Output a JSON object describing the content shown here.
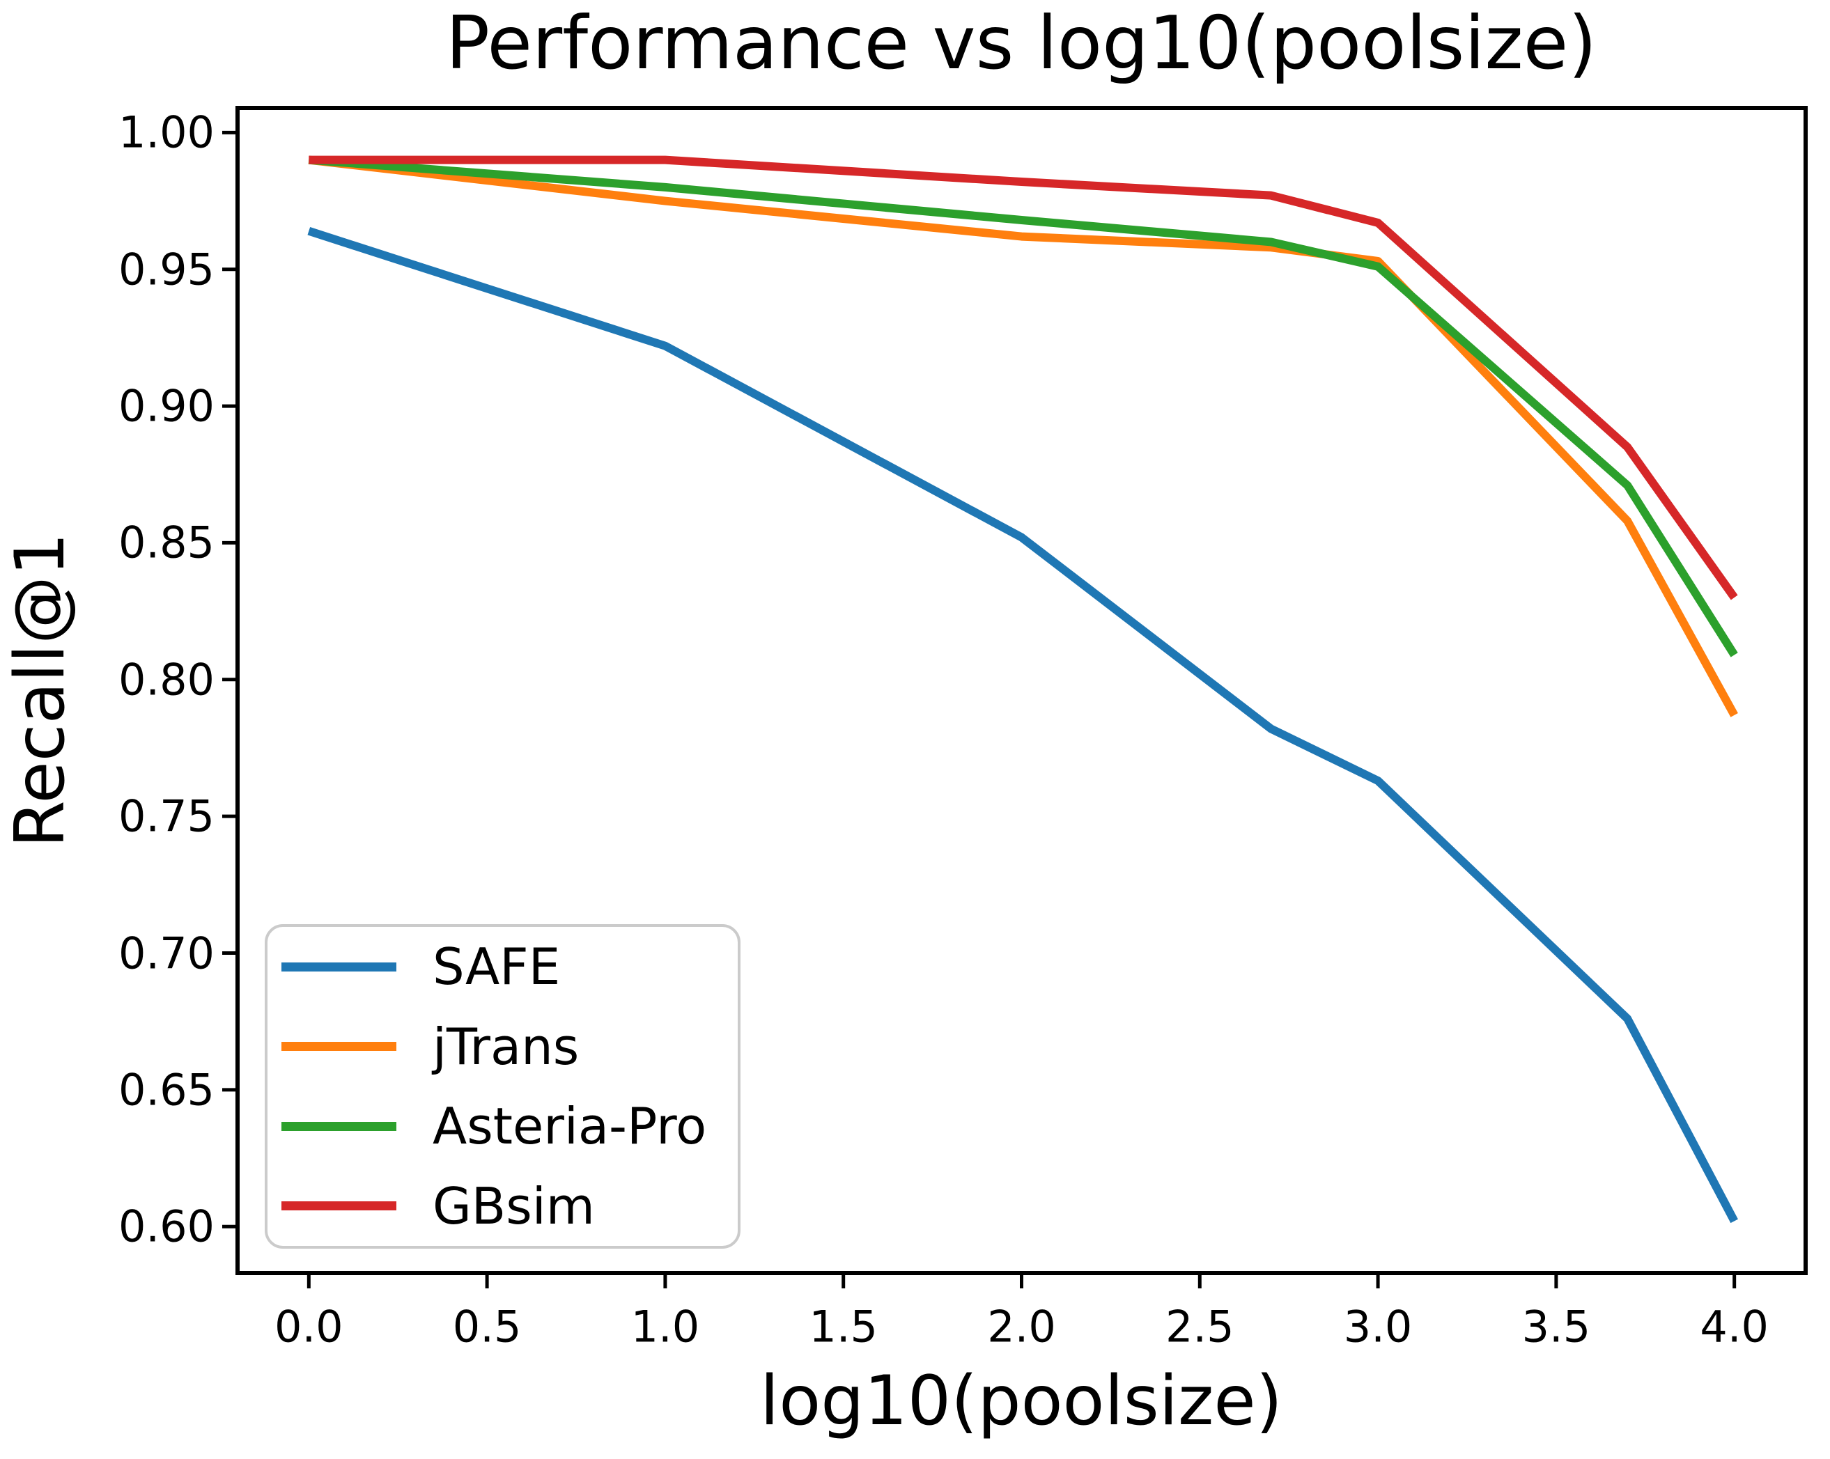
{
  "figure": {
    "title": "Performance vs log10(poolsize)",
    "xlabel": "log10(poolsize)",
    "ylabel": "Recall@1",
    "background": "#ffffff",
    "axis_color": "#000000",
    "legend_border_color": "#cbcbcb"
  },
  "chart_data": {
    "type": "line",
    "title": "Performance vs log10(poolsize)",
    "xlabel": "log10(poolsize)",
    "ylabel": "Recall@1",
    "x": [
      0,
      1,
      2,
      2.7,
      3,
      3.7,
      4
    ],
    "series": [
      {
        "name": "SAFE",
        "color": "#1f77b4",
        "values": [
          0.964,
          0.922,
          0.852,
          0.782,
          0.763,
          0.676,
          0.602
        ]
      },
      {
        "name": "jTrans",
        "color": "#ff7f0e",
        "values": [
          0.99,
          0.975,
          0.962,
          0.958,
          0.953,
          0.858,
          0.787
        ]
      },
      {
        "name": "Asteria-Pro",
        "color": "#2ca02c",
        "values": [
          0.99,
          0.98,
          0.968,
          0.96,
          0.951,
          0.871,
          0.809
        ]
      },
      {
        "name": "GBsim",
        "color": "#d62728",
        "values": [
          0.99,
          0.99,
          0.982,
          0.977,
          0.967,
          0.885,
          0.83
        ]
      }
    ],
    "xticks": [
      0.0,
      0.5,
      1.0,
      1.5,
      2.0,
      2.5,
      3.0,
      3.5,
      4.0
    ],
    "yticks": [
      0.6,
      0.65,
      0.7,
      0.75,
      0.8,
      0.85,
      0.9,
      0.95,
      1.0
    ],
    "xlim": [
      -0.2,
      4.2
    ],
    "ylim": [
      0.583,
      1.009
    ],
    "grid": false,
    "legend_position": "lower left"
  }
}
